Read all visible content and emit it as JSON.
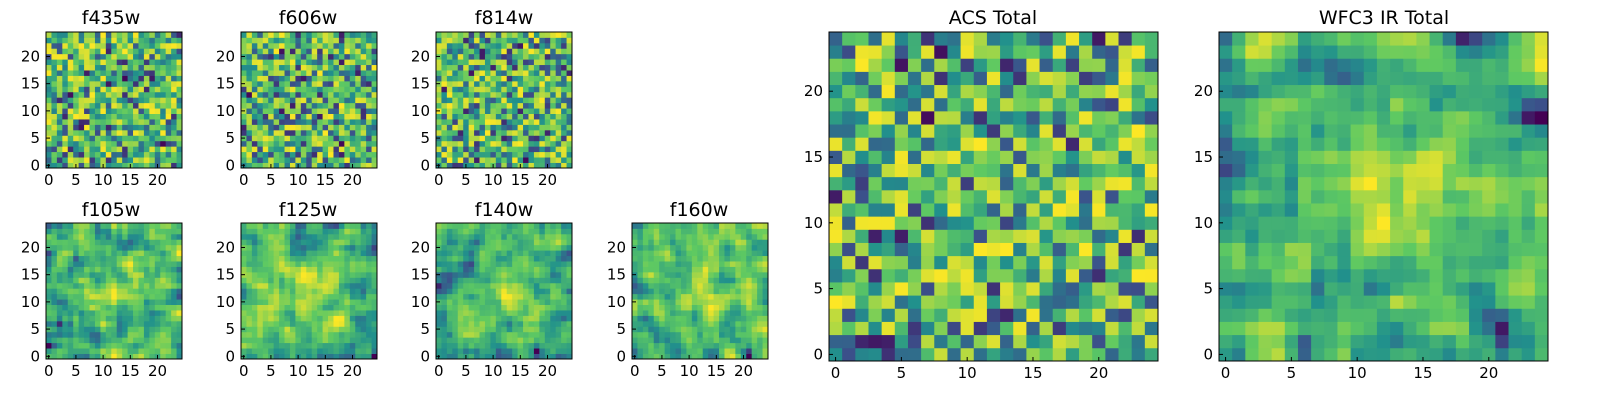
{
  "chart_data": [
    {
      "type": "heatmap",
      "title": "f435w",
      "seed": 11,
      "blob": 0,
      "xticks": [
        0,
        5,
        10,
        15,
        20
      ],
      "yticks": [
        0,
        5,
        10,
        15,
        20
      ],
      "grid": false,
      "colormap": "viridis"
    },
    {
      "type": "heatmap",
      "title": "f606w",
      "seed": 23,
      "blob": 0,
      "xticks": [
        0,
        5,
        10,
        15,
        20
      ],
      "yticks": [
        0,
        5,
        10,
        15,
        20
      ],
      "grid": false,
      "colormap": "viridis"
    },
    {
      "type": "heatmap",
      "title": "f814w",
      "seed": 37,
      "blob": 0,
      "xticks": [
        0,
        5,
        10,
        15,
        20
      ],
      "yticks": [
        0,
        5,
        10,
        15,
        20
      ],
      "grid": false,
      "colormap": "viridis"
    },
    {
      "type": "heatmap",
      "title": "f105w",
      "seed": 41,
      "blob": 1,
      "xticks": [
        0,
        5,
        10,
        15,
        20
      ],
      "yticks": [
        0,
        5,
        10,
        15,
        20
      ],
      "grid": false,
      "colormap": "viridis"
    },
    {
      "type": "heatmap",
      "title": "f125w",
      "seed": 53,
      "blob": 1,
      "xticks": [
        0,
        5,
        10,
        15,
        20
      ],
      "yticks": [
        0,
        5,
        10,
        15,
        20
      ],
      "grid": false,
      "colormap": "viridis"
    },
    {
      "type": "heatmap",
      "title": "f140w",
      "seed": 67,
      "blob": 1,
      "xticks": [
        0,
        5,
        10,
        15,
        20
      ],
      "yticks": [
        0,
        5,
        10,
        15,
        20
      ],
      "grid": false,
      "colormap": "viridis"
    },
    {
      "type": "heatmap",
      "title": "f160w",
      "seed": 79,
      "blob": 1,
      "xticks": [
        0,
        5,
        10,
        15,
        20
      ],
      "yticks": [
        0,
        5,
        10,
        15,
        20
      ],
      "grid": false,
      "colormap": "viridis"
    },
    {
      "type": "heatmap",
      "title": "ACS Total",
      "seed": 97,
      "blob": 0,
      "xticks": [
        0,
        5,
        10,
        15,
        20
      ],
      "yticks": [
        0,
        5,
        10,
        15,
        20
      ],
      "grid": false,
      "colormap": "viridis"
    },
    {
      "type": "heatmap",
      "title": "WFC3 IR Total",
      "seed": 113,
      "blob": 1,
      "xticks": [
        0,
        5,
        10,
        15,
        20
      ],
      "yticks": [
        0,
        5,
        10,
        15,
        20
      ],
      "grid": false,
      "colormap": "viridis"
    }
  ],
  "colors": {
    "low": "#440154",
    "mid": "#21918c",
    "high": "#fde725"
  }
}
